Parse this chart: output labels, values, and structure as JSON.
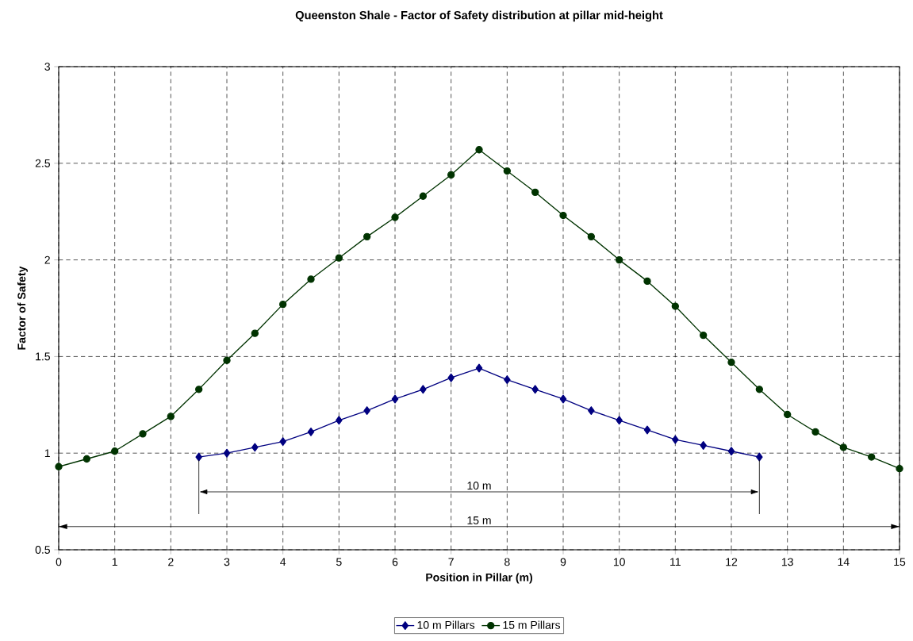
{
  "chart_data": {
    "type": "line",
    "title": "Queenston Shale - Factor of Safety distribution at pillar mid-height",
    "xlabel": "Position in Pillar (m)",
    "ylabel": "Factor of Safety",
    "xlim": [
      0,
      15
    ],
    "ylim": [
      0.5,
      3
    ],
    "xticks": [
      0,
      1,
      2,
      3,
      4,
      5,
      6,
      7,
      8,
      9,
      10,
      11,
      12,
      13,
      14,
      15
    ],
    "yticks": [
      0.5,
      1,
      1.5,
      2,
      2.5,
      3
    ],
    "grid": true,
    "legend": "bottom",
    "series": [
      {
        "name": "10 m Pillars",
        "color": "#000080",
        "marker": "diamond",
        "x": [
          2.5,
          3,
          3.5,
          4,
          4.5,
          5,
          5.5,
          6,
          6.5,
          7,
          7.5,
          8,
          8.5,
          9,
          9.5,
          10,
          10.5,
          11,
          11.5,
          12,
          12.5
        ],
        "values": [
          0.98,
          1.0,
          1.03,
          1.06,
          1.11,
          1.17,
          1.22,
          1.28,
          1.33,
          1.39,
          1.44,
          1.38,
          1.33,
          1.28,
          1.22,
          1.17,
          1.12,
          1.07,
          1.04,
          1.01,
          0.98
        ]
      },
      {
        "name": "15 m Pillars",
        "color": "#003300",
        "marker": "circle",
        "x": [
          0,
          0.5,
          1,
          1.5,
          2,
          2.5,
          3,
          3.5,
          4,
          4.5,
          5,
          5.5,
          6,
          6.5,
          7,
          7.5,
          8,
          8.5,
          9,
          9.5,
          10,
          10.5,
          11,
          11.5,
          12,
          12.5,
          13,
          13.5,
          14,
          14.5,
          15
        ],
        "values": [
          0.93,
          0.97,
          1.01,
          1.1,
          1.19,
          1.33,
          1.48,
          1.62,
          1.77,
          1.9,
          2.01,
          2.12,
          2.22,
          2.33,
          2.44,
          2.57,
          2.46,
          2.35,
          2.23,
          2.12,
          2.0,
          1.89,
          1.76,
          1.61,
          1.47,
          1.33,
          1.2,
          1.11,
          1.03,
          0.98,
          0.92
        ]
      }
    ],
    "annotations": [
      "10 m"
    ],
    "ref_lines": [
      {
        "axis": "y",
        "value": 0.62,
        "label": "15 m",
        "color": "#000000",
        "line_style": "solid"
      }
    ]
  }
}
